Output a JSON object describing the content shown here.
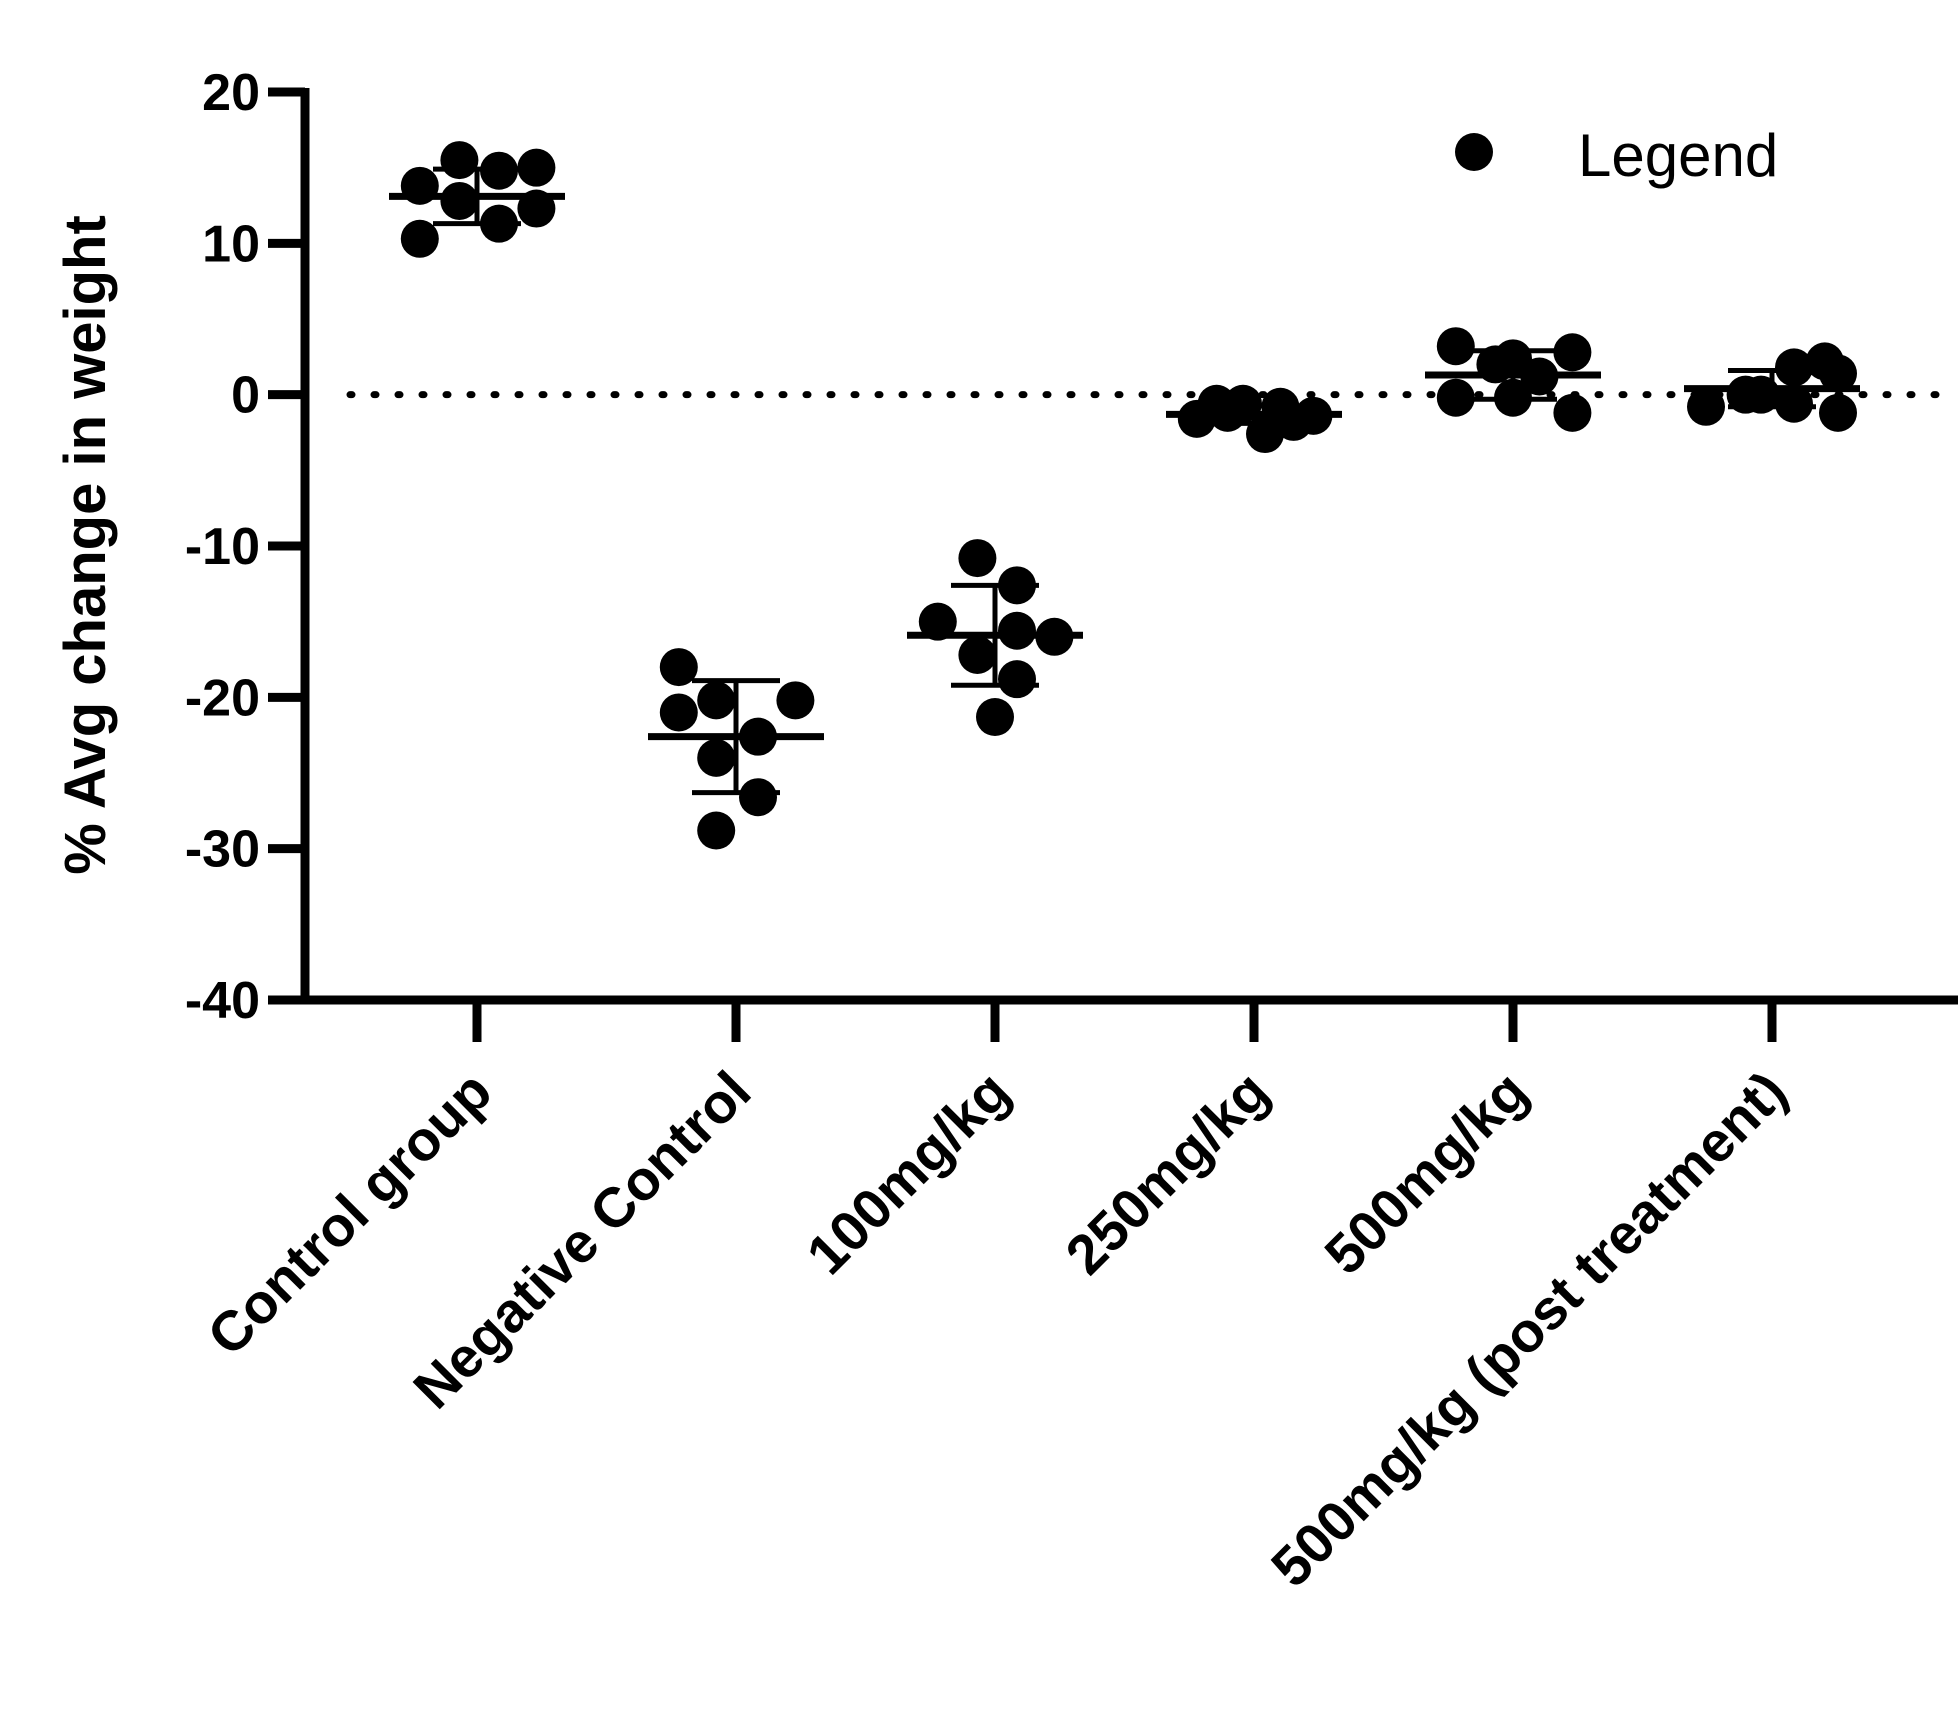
{
  "chart_data": {
    "type": "scatter",
    "title": "",
    "ylabel": "% Avg change in weight",
    "xlabel": "",
    "ylim": [
      -40,
      20
    ],
    "yticks": [
      20,
      10,
      0,
      -10,
      -20,
      -30,
      -40
    ],
    "ytick_labels": [
      "20",
      "10",
      "0",
      "-10",
      "-20",
      "-30",
      "-40"
    ],
    "reference_line": {
      "y": 0,
      "style": "dotted"
    },
    "legend": {
      "label": "Legend",
      "position": "top-right"
    },
    "categories": [
      "Control group",
      "Negative Control",
      "100mg/kg",
      "250mg/kg",
      "500mg/kg",
      "500mg/kg (post treatment)"
    ],
    "groups": [
      {
        "category": "Control group",
        "points": [
          {
            "offset": -0.26,
            "y": 13.8
          },
          {
            "offset": -0.08,
            "y": 15.5
          },
          {
            "offset": 0.1,
            "y": 14.8
          },
          {
            "offset": 0.27,
            "y": 15.0
          },
          {
            "offset": -0.26,
            "y": 10.3
          },
          {
            "offset": -0.08,
            "y": 12.8
          },
          {
            "offset": 0.1,
            "y": 11.3
          },
          {
            "offset": 0.27,
            "y": 12.3
          }
        ],
        "mean": 13.1,
        "sd": 1.8
      },
      {
        "category": "Negative Control",
        "points": [
          {
            "offset": -0.26,
            "y": -18.0
          },
          {
            "offset": -0.09,
            "y": -20.2
          },
          {
            "offset": 0.27,
            "y": -20.2
          },
          {
            "offset": -0.26,
            "y": -21.0
          },
          {
            "offset": -0.09,
            "y": -24.0
          },
          {
            "offset": 0.1,
            "y": -22.6
          },
          {
            "offset": 0.1,
            "y": -26.6
          },
          {
            "offset": -0.09,
            "y": -28.8
          }
        ],
        "mean": -22.6,
        "sd": 3.7
      },
      {
        "category": "100mg/kg",
        "points": [
          {
            "offset": -0.26,
            "y": -15.0
          },
          {
            "offset": -0.08,
            "y": -10.8
          },
          {
            "offset": 0.1,
            "y": -12.6
          },
          {
            "offset": 0.27,
            "y": -16.0
          },
          {
            "offset": -0.08,
            "y": -17.2
          },
          {
            "offset": 0.1,
            "y": -15.6
          },
          {
            "offset": 0.1,
            "y": -18.8
          },
          {
            "offset": 0.0,
            "y": -21.3
          }
        ],
        "mean": -15.9,
        "sd": 3.3
      },
      {
        "category": "250mg/kg",
        "points": [
          {
            "offset": -0.26,
            "y": -1.6
          },
          {
            "offset": -0.17,
            "y": -0.6
          },
          {
            "offset": -0.05,
            "y": -0.6
          },
          {
            "offset": 0.12,
            "y": -0.8
          },
          {
            "offset": -0.12,
            "y": -1.2
          },
          {
            "offset": 0.05,
            "y": -2.6
          },
          {
            "offset": 0.18,
            "y": -1.8
          },
          {
            "offset": 0.27,
            "y": -1.4
          }
        ],
        "mean": -1.3,
        "sd": 0.6
      },
      {
        "category": "500mg/kg",
        "points": [
          {
            "offset": -0.26,
            "y": 3.2
          },
          {
            "offset": -0.08,
            "y": 2.0
          },
          {
            "offset": 0.0,
            "y": 2.4
          },
          {
            "offset": 0.27,
            "y": 2.8
          },
          {
            "offset": -0.26,
            "y": -0.2
          },
          {
            "offset": 0.0,
            "y": -0.2
          },
          {
            "offset": 0.12,
            "y": 1.2
          },
          {
            "offset": 0.27,
            "y": -1.2
          }
        ],
        "mean": 1.3,
        "sd": 1.6
      },
      {
        "category": "500mg/kg (post treatment)",
        "points": [
          {
            "offset": -0.3,
            "y": -0.8
          },
          {
            "offset": -0.12,
            "y": 0.0
          },
          {
            "offset": -0.05,
            "y": 0.0
          },
          {
            "offset": 0.1,
            "y": 1.8
          },
          {
            "offset": 0.1,
            "y": -0.6
          },
          {
            "offset": 0.24,
            "y": 2.2
          },
          {
            "offset": 0.3,
            "y": 1.4
          },
          {
            "offset": 0.3,
            "y": -1.2
          }
        ],
        "mean": 0.4,
        "sd": 1.2
      }
    ]
  }
}
